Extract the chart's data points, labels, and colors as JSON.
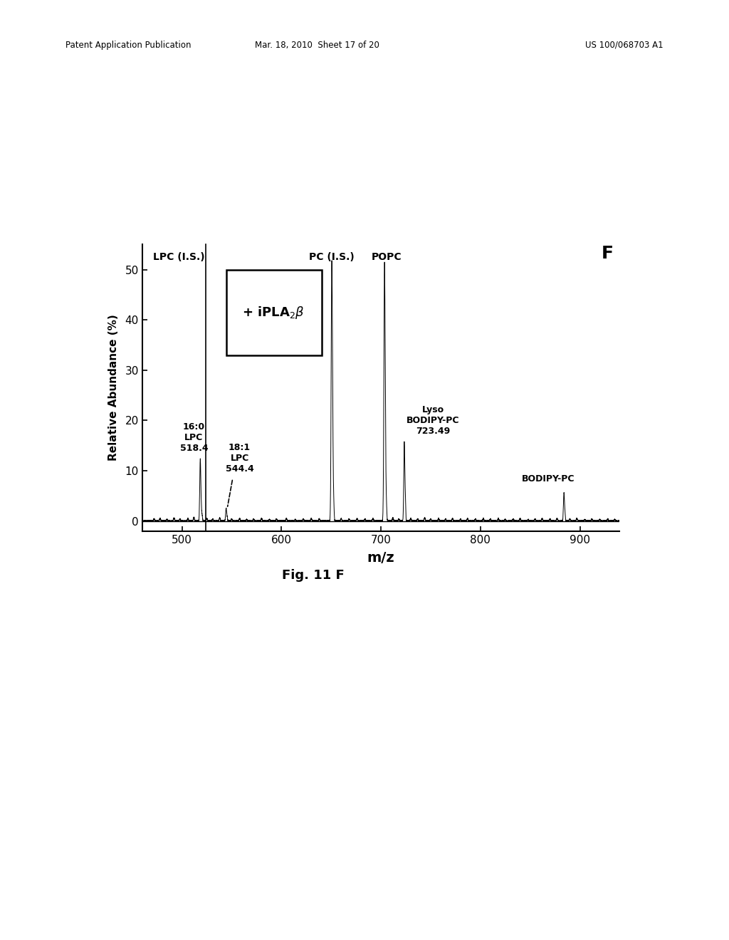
{
  "title": "Fig. 11 F",
  "xlabel": "m/z",
  "ylabel": "Relative Abundance (%)",
  "xlim": [
    460,
    940
  ],
  "ylim": [
    -2,
    55
  ],
  "xticks": [
    500,
    600,
    700,
    800,
    900
  ],
  "yticks": [
    0,
    10,
    20,
    30,
    40,
    50
  ],
  "background_color": "#ffffff",
  "header_left": "Patent Application Publication",
  "header_center": "Mar. 18, 2010  Sheet 17 of 20",
  "header_right": "US 100/068703 A1",
  "panel_label": "F",
  "lpc_is_label": "LPC (I.S.)",
  "pc_is_label": "PC (I.S.)",
  "popc_label": "POPC",
  "box_text": "+ iPLA₂β",
  "fig_caption": "Fig. 11 F"
}
